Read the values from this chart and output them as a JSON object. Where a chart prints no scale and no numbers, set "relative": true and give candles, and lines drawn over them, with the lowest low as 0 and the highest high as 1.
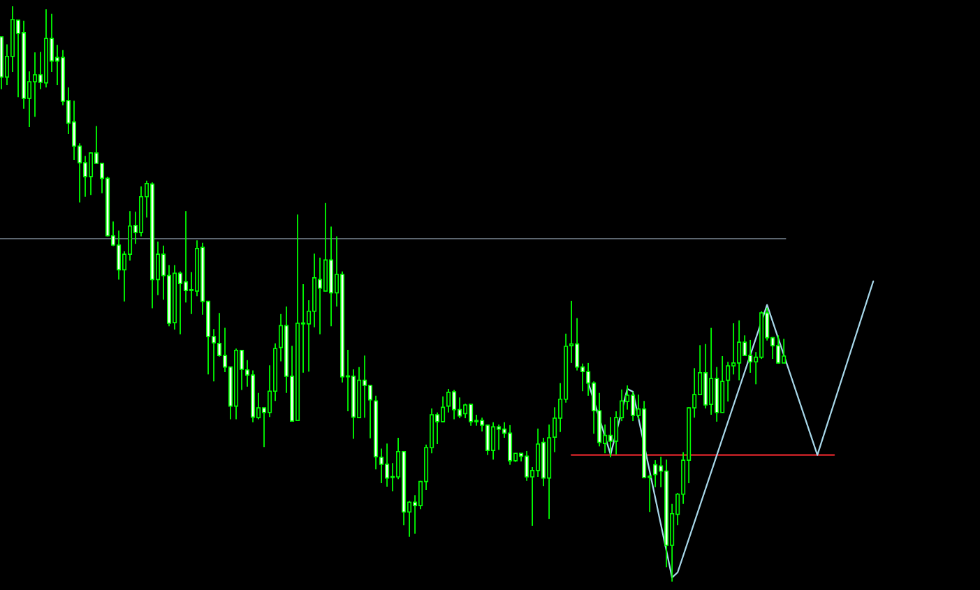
{
  "chart_data": {
    "type": "candlestick",
    "relative": true,
    "categories": [
      null,
      null,
      null,
      null,
      null,
      null,
      null,
      null,
      null,
      null,
      null,
      null,
      null,
      null,
      null,
      null,
      null,
      null,
      null,
      null,
      null,
      null,
      null,
      null,
      null,
      null,
      null,
      null,
      null,
      null,
      null,
      null,
      null,
      null,
      null,
      null,
      null,
      null,
      null,
      null,
      null,
      null,
      null,
      null,
      null,
      null,
      null,
      null,
      null,
      null,
      null,
      null,
      null,
      null,
      null,
      null,
      null,
      null,
      null,
      null,
      null,
      null,
      null,
      null,
      null,
      null,
      null,
      null,
      null,
      null,
      null,
      null,
      null,
      null,
      null,
      null,
      null,
      null,
      null,
      null,
      null,
      null,
      null,
      null,
      null,
      null,
      null,
      null,
      null,
      null,
      null,
      null,
      null,
      null,
      null,
      null,
      null,
      null,
      null,
      null,
      null,
      null,
      null,
      null,
      null,
      null,
      null,
      null,
      null,
      null,
      null,
      null,
      null,
      null,
      null,
      null,
      null,
      null,
      null,
      null,
      null,
      null,
      null,
      null,
      null,
      null,
      null,
      null,
      null,
      null,
      null,
      null,
      null,
      null,
      null,
      null,
      null,
      null,
      null,
      null,
      null,
      null,
      null,
      null,
      null,
      null,
      null,
      null,
      null,
      null,
      null,
      null,
      null,
      null,
      null,
      null,
      null,
      null,
      null,
      null,
      null,
      null,
      null,
      null,
      null,
      null,
      null,
      null,
      null,
      null,
      null,
      null,
      null,
      null,
      null,
      null
    ],
    "ohlc": [
      [
        0.947,
        0.947,
        0.856,
        0.877
      ],
      [
        0.877,
        0.934,
        0.863,
        0.913
      ],
      [
        0.913,
        1.0,
        0.886,
        0.977
      ],
      [
        0.976,
        0.976,
        0.842,
        0.953
      ],
      [
        0.954,
        0.975,
        0.822,
        0.84
      ],
      [
        0.84,
        0.887,
        0.79,
        0.869
      ],
      [
        0.869,
        0.92,
        0.808,
        0.881
      ],
      [
        0.881,
        0.921,
        0.856,
        0.868
      ],
      [
        0.867,
        0.995,
        0.859,
        0.944
      ],
      [
        0.944,
        0.987,
        0.886,
        0.905
      ],
      [
        0.911,
        0.933,
        0.863,
        0.905
      ],
      [
        0.911,
        0.924,
        0.828,
        0.835
      ],
      [
        0.836,
        0.859,
        0.778,
        0.797
      ],
      [
        0.799,
        0.836,
        0.733,
        0.757
      ],
      [
        0.757,
        0.762,
        0.659,
        0.728
      ],
      [
        0.728,
        0.74,
        0.669,
        0.704
      ],
      [
        0.704,
        0.746,
        0.672,
        0.745
      ],
      [
        0.745,
        0.792,
        0.727,
        0.727
      ],
      [
        0.727,
        0.727,
        0.675,
        0.701
      ],
      [
        0.701,
        0.704,
        0.6,
        0.601
      ],
      [
        0.601,
        0.626,
        0.583,
        0.585
      ],
      [
        0.585,
        0.61,
        0.525,
        0.542
      ],
      [
        0.542,
        0.574,
        0.487,
        0.569
      ],
      [
        0.569,
        0.644,
        0.558,
        0.618
      ],
      [
        0.619,
        0.643,
        0.587,
        0.607
      ],
      [
        0.607,
        0.687,
        0.6,
        0.669
      ],
      [
        0.669,
        0.697,
        0.633,
        0.692
      ],
      [
        0.691,
        0.694,
        0.475,
        0.525
      ],
      [
        0.525,
        0.591,
        0.498,
        0.569
      ],
      [
        0.569,
        0.584,
        0.49,
        0.532
      ],
      [
        0.532,
        0.55,
        0.444,
        0.449
      ],
      [
        0.45,
        0.55,
        0.438,
        0.536
      ],
      [
        0.536,
        0.539,
        0.43,
        0.518
      ],
      [
        0.521,
        0.644,
        0.485,
        0.506
      ],
      [
        0.506,
        0.538,
        0.465,
        0.506
      ],
      [
        0.505,
        0.593,
        0.496,
        0.579
      ],
      [
        0.581,
        0.589,
        0.464,
        0.487
      ],
      [
        0.487,
        0.488,
        0.36,
        0.426
      ],
      [
        0.426,
        0.439,
        0.348,
        0.415
      ],
      [
        0.414,
        0.467,
        0.391,
        0.393
      ],
      [
        0.393,
        0.441,
        0.364,
        0.373
      ],
      [
        0.373,
        0.373,
        0.282,
        0.305
      ],
      [
        0.305,
        0.405,
        0.282,
        0.402
      ],
      [
        0.402,
        0.402,
        0.333,
        0.369
      ],
      [
        0.368,
        0.385,
        0.339,
        0.359
      ],
      [
        0.359,
        0.367,
        0.277,
        0.286
      ],
      [
        0.285,
        0.328,
        0.282,
        0.302
      ],
      [
        0.302,
        0.303,
        0.234,
        0.294
      ],
      [
        0.294,
        0.376,
        0.286,
        0.331
      ],
      [
        0.331,
        0.414,
        0.314,
        0.405
      ],
      [
        0.407,
        0.465,
        0.383,
        0.445
      ],
      [
        0.445,
        0.478,
        0.328,
        0.357
      ],
      [
        0.357,
        0.41,
        0.279,
        0.279
      ],
      [
        0.28,
        0.638,
        0.28,
        0.449
      ],
      [
        0.448,
        0.517,
        0.363,
        0.448
      ],
      [
        0.448,
        0.489,
        0.365,
        0.47
      ],
      [
        0.47,
        0.57,
        0.442,
        0.528
      ],
      [
        0.525,
        0.563,
        0.43,
        0.51
      ],
      [
        0.505,
        0.658,
        0.505,
        0.559
      ],
      [
        0.559,
        0.617,
        0.444,
        0.502
      ],
      [
        0.502,
        0.6,
        0.478,
        0.534
      ],
      [
        0.534,
        0.539,
        0.346,
        0.356
      ],
      [
        0.356,
        0.403,
        0.296,
        0.356
      ],
      [
        0.357,
        0.369,
        0.248,
        0.286
      ],
      [
        0.285,
        0.373,
        0.285,
        0.35
      ],
      [
        0.35,
        0.393,
        0.285,
        0.341
      ],
      [
        0.341,
        0.341,
        0.249,
        0.316
      ],
      [
        0.314,
        0.323,
        0.195,
        0.217
      ],
      [
        0.216,
        0.231,
        0.171,
        0.204
      ],
      [
        0.204,
        0.24,
        0.165,
        0.18
      ],
      [
        0.181,
        0.206,
        0.157,
        0.181
      ],
      [
        0.182,
        0.25,
        0.178,
        0.226
      ],
      [
        0.226,
        0.226,
        0.098,
        0.121
      ],
      [
        0.121,
        0.14,
        0.078,
        0.138
      ],
      [
        0.138,
        0.15,
        0.083,
        0.132
      ],
      [
        0.132,
        0.175,
        0.126,
        0.174
      ],
      [
        0.174,
        0.238,
        0.159,
        0.233
      ],
      [
        0.233,
        0.301,
        0.223,
        0.29
      ],
      [
        0.29,
        0.294,
        0.239,
        0.278
      ],
      [
        0.278,
        0.322,
        0.277,
        0.303
      ],
      [
        0.305,
        0.335,
        0.294,
        0.329
      ],
      [
        0.33,
        0.333,
        0.282,
        0.299
      ],
      [
        0.299,
        0.32,
        0.284,
        0.288
      ],
      [
        0.292,
        0.309,
        0.284,
        0.307
      ],
      [
        0.308,
        0.308,
        0.271,
        0.278
      ],
      [
        0.28,
        0.29,
        0.271,
        0.278
      ],
      [
        0.28,
        0.285,
        0.261,
        0.272
      ],
      [
        0.272,
        0.272,
        0.22,
        0.228
      ],
      [
        0.228,
        0.277,
        0.212,
        0.269
      ],
      [
        0.269,
        0.273,
        0.229,
        0.265
      ],
      [
        0.265,
        0.277,
        0.25,
        0.258
      ],
      [
        0.258,
        0.272,
        0.203,
        0.21
      ],
      [
        0.21,
        0.223,
        0.208,
        0.223
      ],
      [
        0.223,
        0.223,
        0.209,
        0.218
      ],
      [
        0.218,
        0.227,
        0.175,
        0.182
      ],
      [
        0.182,
        0.199,
        0.097,
        0.193
      ],
      [
        0.193,
        0.266,
        0.182,
        0.239
      ],
      [
        0.242,
        0.25,
        0.166,
        0.18
      ],
      [
        0.18,
        0.273,
        0.109,
        0.25
      ],
      [
        0.251,
        0.303,
        0.225,
        0.284
      ],
      [
        0.284,
        0.345,
        0.26,
        0.317
      ],
      [
        0.317,
        0.431,
        0.311,
        0.409
      ],
      [
        0.41,
        0.488,
        0.38,
        0.413
      ],
      [
        0.413,
        0.458,
        0.367,
        0.373
      ],
      [
        0.373,
        0.379,
        0.331,
        0.365
      ],
      [
        0.365,
        0.38,
        0.323,
        0.345
      ],
      [
        0.345,
        0.348,
        0.257,
        0.297
      ],
      [
        0.297,
        0.328,
        0.235,
        0.242
      ],
      [
        0.24,
        0.273,
        0.223,
        0.254
      ],
      [
        0.254,
        0.286,
        0.216,
        0.244
      ],
      [
        0.244,
        0.296,
        0.221,
        0.285
      ],
      [
        0.285,
        0.334,
        0.279,
        0.314
      ],
      [
        0.313,
        0.341,
        0.299,
        0.324
      ],
      [
        0.324,
        0.33,
        0.279,
        0.289
      ],
      [
        0.289,
        0.325,
        0.282,
        0.3
      ],
      [
        0.3,
        0.314,
        0.18,
        0.181
      ],
      [
        0.181,
        0.186,
        0.121,
        0.183
      ],
      [
        0.203,
        0.211,
        0.164,
        0.186
      ],
      [
        0.201,
        0.217,
        0.164,
        0.192
      ],
      [
        0.192,
        0.212,
        0.025,
        0.063
      ],
      [
        0.063,
        0.135,
        0.0,
        0.118
      ],
      [
        0.117,
        0.154,
        0.098,
        0.152
      ],
      [
        0.152,
        0.225,
        0.135,
        0.211
      ],
      [
        0.211,
        0.303,
        0.171,
        0.302
      ],
      [
        0.302,
        0.371,
        0.285,
        0.325
      ],
      [
        0.325,
        0.411,
        0.325,
        0.363
      ],
      [
        0.363,
        0.413,
        0.301,
        0.307
      ],
      [
        0.308,
        0.441,
        0.29,
        0.353
      ],
      [
        0.353,
        0.373,
        0.278,
        0.294
      ],
      [
        0.294,
        0.392,
        0.294,
        0.348
      ],
      [
        0.35,
        0.382,
        0.313,
        0.375
      ],
      [
        0.375,
        0.449,
        0.36,
        0.38
      ],
      [
        0.38,
        0.454,
        0.35,
        0.416
      ],
      [
        0.416,
        0.428,
        0.393,
        0.393
      ],
      [
        0.393,
        0.42,
        0.363,
        0.382
      ],
      [
        0.382,
        0.399,
        0.343,
        0.39
      ],
      [
        0.39,
        0.47,
        0.387,
        0.467
      ],
      [
        0.467,
        0.476,
        0.419,
        0.424
      ],
      [
        0.424,
        0.425,
        0.387,
        0.41
      ],
      [
        0.41,
        0.428,
        0.379,
        0.38
      ],
      [
        0.38,
        0.422,
        0.38,
        0.392
      ],
      null,
      null,
      null,
      null,
      null,
      null,
      null,
      null,
      null,
      null,
      null,
      null,
      null,
      null,
      null,
      null,
      null,
      null,
      null,
      null,
      null,
      null,
      null,
      null,
      null,
      null,
      null,
      null,
      null,
      null,
      null,
      null,
      null,
      null,
      null
    ],
    "series": [
      {
        "type": "line",
        "color": "#e0262b",
        "values": [
          null,
          null,
          null,
          null,
          null,
          null,
          null,
          null,
          null,
          null,
          null,
          null,
          null,
          null,
          null,
          null,
          null,
          null,
          null,
          null,
          null,
          null,
          null,
          null,
          null,
          null,
          null,
          null,
          null,
          null,
          null,
          null,
          null,
          null,
          null,
          null,
          null,
          null,
          null,
          null,
          null,
          null,
          null,
          null,
          null,
          null,
          null,
          null,
          null,
          null,
          null,
          null,
          null,
          null,
          null,
          null,
          null,
          null,
          null,
          null,
          null,
          null,
          null,
          null,
          null,
          null,
          null,
          null,
          null,
          null,
          null,
          null,
          null,
          null,
          null,
          null,
          null,
          null,
          null,
          null,
          null,
          null,
          null,
          null,
          null,
          null,
          null,
          null,
          null,
          null,
          null,
          null,
          null,
          null,
          null,
          null,
          null,
          null,
          null,
          null,
          null,
          null,
          0.22,
          null,
          null,
          null,
          null,
          null,
          null,
          null,
          null,
          null,
          null,
          null,
          null,
          null,
          null,
          null,
          null,
          null,
          null,
          null,
          null,
          null,
          null,
          null,
          null,
          null,
          null,
          null,
          null,
          null,
          null,
          null,
          null,
          null,
          null,
          null,
          null,
          null,
          null,
          null,
          null,
          null,
          null,
          null,
          null,
          null,
          null,
          0.22,
          null,
          null,
          null,
          null,
          null,
          null,
          null,
          null,
          null,
          null,
          null,
          null,
          null,
          null,
          null,
          null,
          null,
          null,
          null,
          null,
          null,
          null,
          null,
          null,
          null,
          null
        ]
      },
      {
        "type": "line",
        "color": "#a8d8ea",
        "values": [
          null,
          null,
          null,
          null,
          null,
          null,
          null,
          null,
          null,
          null,
          null,
          null,
          null,
          null,
          null,
          null,
          null,
          null,
          null,
          null,
          null,
          null,
          null,
          null,
          null,
          null,
          null,
          null,
          null,
          null,
          null,
          null,
          null,
          null,
          null,
          null,
          null,
          null,
          null,
          null,
          null,
          null,
          null,
          null,
          null,
          null,
          null,
          null,
          null,
          null,
          null,
          null,
          null,
          null,
          null,
          null,
          null,
          null,
          null,
          null,
          null,
          null,
          null,
          null,
          null,
          null,
          null,
          null,
          null,
          null,
          null,
          null,
          null,
          null,
          null,
          null,
          null,
          null,
          null,
          null,
          null,
          null,
          null,
          null,
          null,
          null,
          null,
          null,
          null,
          null,
          null,
          null,
          null,
          null,
          null,
          null,
          null,
          null,
          null,
          null,
          null,
          null,
          null,
          null,
          null,
          0.346,
          null,
          null,
          null,
          0.221,
          null,
          null,
          0.335,
          0.33,
          null,
          null,
          null,
          null,
          null,
          null,
          0.007,
          0.016,
          null,
          null,
          null,
          null,
          null,
          null,
          null,
          null,
          null,
          null,
          null,
          null,
          null,
          null,
          null,
          0.481,
          null,
          null,
          null,
          null,
          null,
          null,
          null,
          null,
          0.22,
          null,
          null,
          null,
          null,
          null,
          null,
          null,
          null,
          null,
          0.522,
          null,
          null,
          null,
          null,
          null,
          null,
          null,
          null,
          null,
          null,
          null,
          null,
          null,
          null,
          null,
          null,
          null,
          null,
          null
        ]
      }
    ],
    "ref_lines": [
      {
        "axis": "y",
        "value": 0.596,
        "color": "#7f8c99"
      }
    ]
  }
}
